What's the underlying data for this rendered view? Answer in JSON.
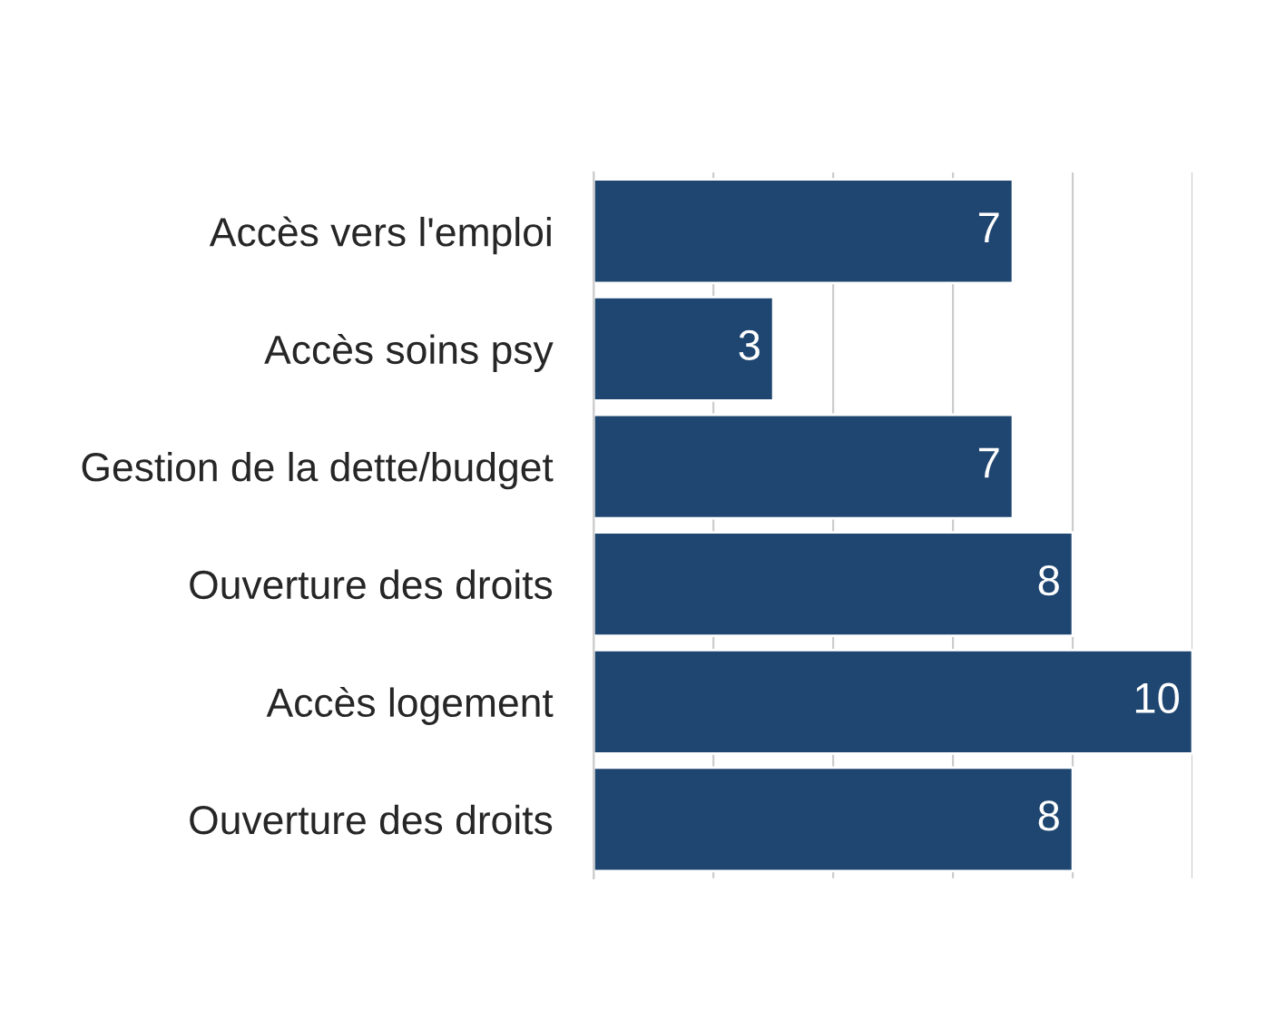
{
  "chart_data": {
    "type": "bar",
    "orientation": "horizontal",
    "categories": [
      "Accès vers l'emploi",
      "Accès soins psy",
      "Gestion de la dette/budget",
      "Ouverture des droits",
      "Accès logement",
      "Ouverture des droits"
    ],
    "values": [
      7,
      3,
      7,
      8,
      10,
      8
    ],
    "color": "#1f4670",
    "xlim": [
      0,
      10
    ],
    "xticks": [
      {
        "value": 0,
        "label": null
      },
      {
        "value": 2,
        "label": null
      },
      {
        "value": 4,
        "label": null
      },
      {
        "value": 6,
        "label": null
      },
      {
        "value": 8,
        "label": null
      },
      {
        "value": 10,
        "label": null
      }
    ],
    "tick_labels": "y",
    "grid": "x",
    "data_labels": true,
    "legend": false
  }
}
